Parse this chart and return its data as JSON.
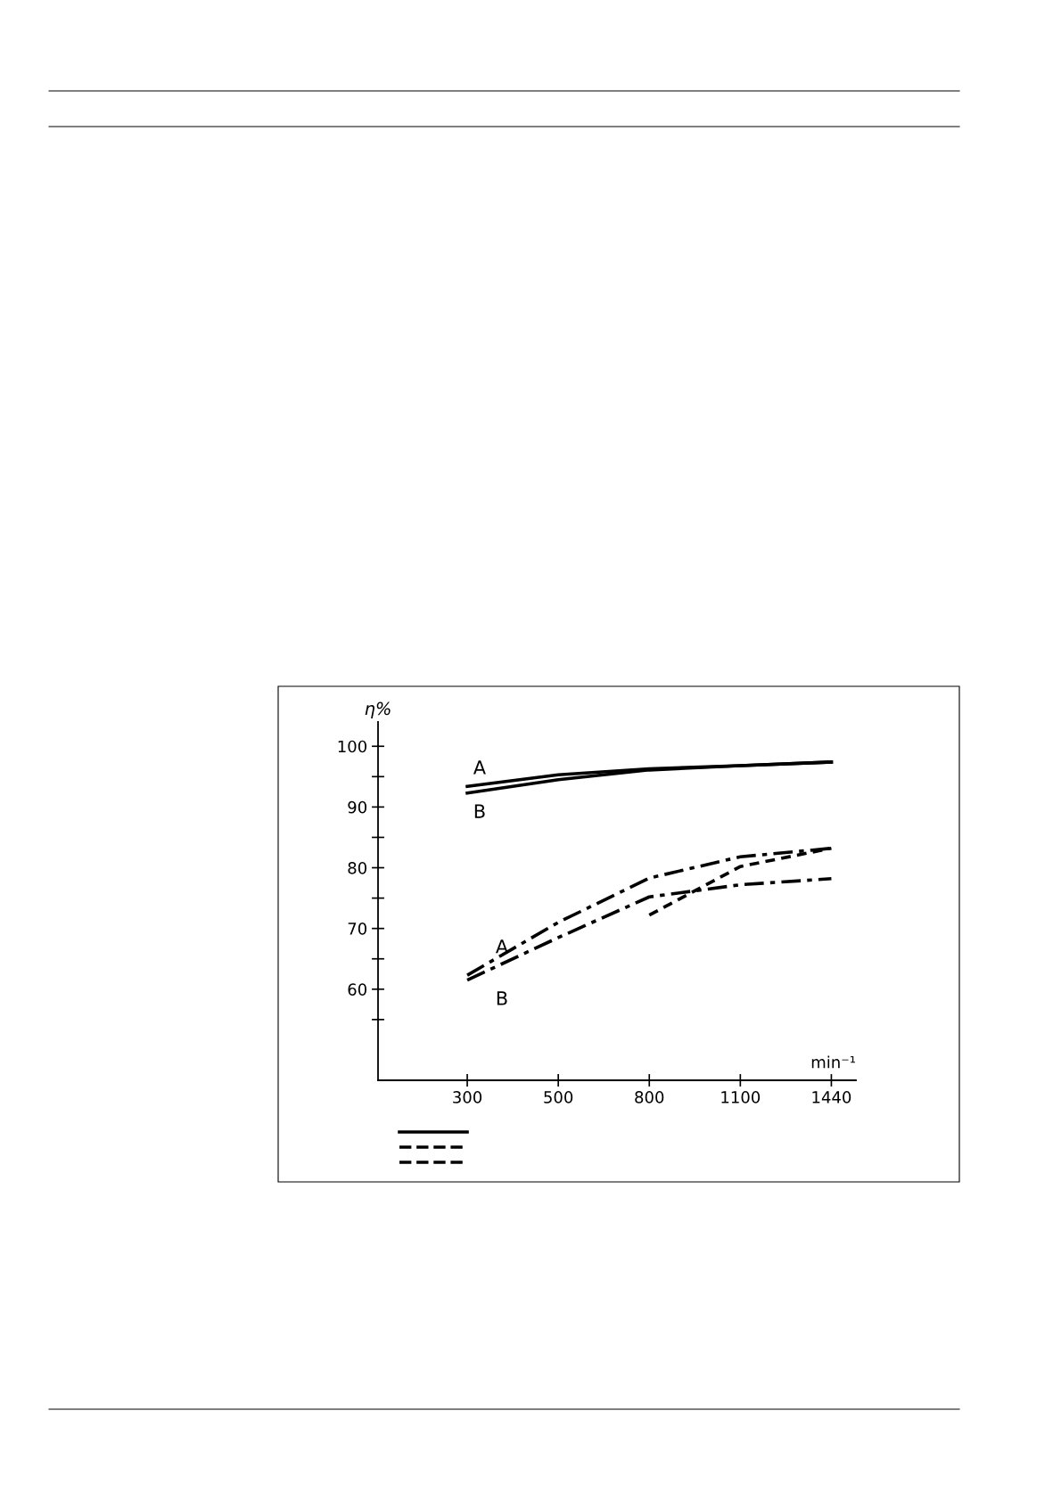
{
  "chart_data": {
    "type": "line",
    "xlabel": "min⁻¹",
    "ylabel": "η%",
    "categories": [
      "300",
      "500",
      "800",
      "1100",
      "1440"
    ],
    "series": [
      {
        "color": "#000000",
        "line_style": "solid",
        "values": [
          93.4,
          95.3,
          96.3,
          96.8,
          97.4
        ]
      },
      {
        "color": "#000000",
        "line_style": "solid",
        "values": [
          92.3,
          94.5,
          96.1,
          96.8,
          97.4
        ]
      },
      {
        "color": "#000000",
        "line_style": "dashdot",
        "values": [
          62.3,
          71.0,
          78.3,
          81.8,
          83.2
        ]
      },
      {
        "color": "#000000",
        "line_style": "dashdot",
        "values": [
          61.5,
          68.5,
          75.2,
          77.2,
          78.2
        ]
      },
      {
        "color": "#000000",
        "line_style": "dashed",
        "values": [
          null,
          null,
          72.2,
          80.2,
          83.2
        ]
      }
    ],
    "ylim": [
      45,
      104
    ],
    "yticks": [
      {
        "value": 55,
        "label": null
      },
      60,
      {
        "value": 65,
        "label": null
      },
      70,
      {
        "value": 75,
        "label": null
      },
      80,
      {
        "value": 85,
        "label": null
      },
      90,
      {
        "value": 95,
        "label": null
      },
      100
    ],
    "annotations": [
      {
        "text": "A",
        "x": "300",
        "y": 93.4
      },
      {
        "text": "B",
        "x": "300",
        "y": 92.3
      },
      {
        "text": "A",
        "x": "300",
        "y": 62.3
      },
      {
        "text": "B",
        "x": "300",
        "y": 61.5
      }
    ],
    "grid": false
  }
}
